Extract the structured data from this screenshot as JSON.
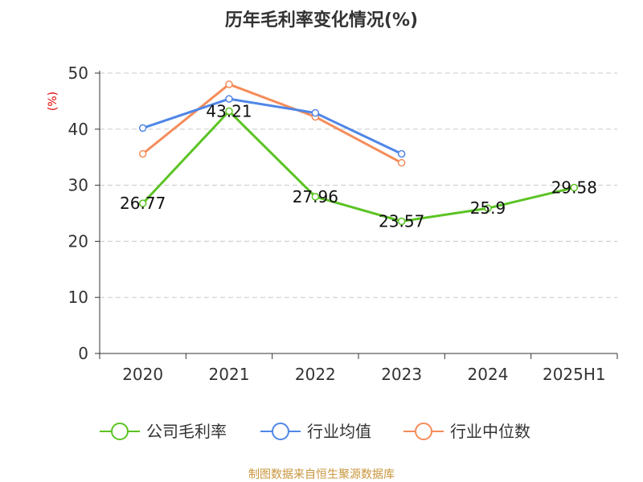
{
  "chart_data": {
    "type": "line",
    "title": "历年毛利率变化情况(%)",
    "ylabel": "(%)",
    "categories": [
      "2020",
      "2021",
      "2022",
      "2023",
      "2024",
      "2025H1"
    ],
    "ylim": [
      0,
      50
    ],
    "yticks": [
      0,
      10,
      20,
      30,
      40,
      50
    ],
    "grid": true,
    "legend_position": "bottom",
    "series": [
      {
        "name": "公司毛利率",
        "color": "#5bc323",
        "values": [
          26.77,
          43.21,
          27.96,
          23.57,
          25.9,
          29.58
        ],
        "labels": [
          "26.77",
          "43.21",
          "27.96",
          "23.57",
          "25.9",
          "29.58"
        ]
      },
      {
        "name": "行业均值",
        "color": "#4f86e6",
        "values": [
          40.2,
          45.4,
          42.9,
          35.6,
          null,
          null
        ]
      },
      {
        "name": "行业中位数",
        "color": "#f58c5a",
        "values": [
          35.6,
          48.0,
          42.2,
          34.0,
          null,
          null
        ]
      }
    ],
    "source_note": "制图数据来自恒生聚源数据库"
  }
}
